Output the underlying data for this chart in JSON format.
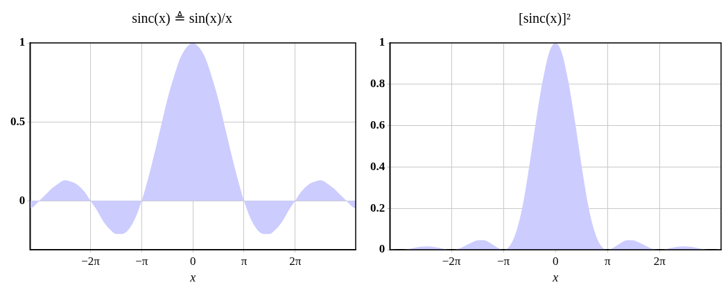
{
  "chart_data": [
    {
      "type": "area",
      "title": "sinc(x) ≜ sin(x)/x",
      "xlabel": "x",
      "x": [
        -10,
        -9.817,
        -9.425,
        -9.032,
        -8.639,
        -8.247,
        -7.854,
        -7.461,
        -7.069,
        -6.676,
        -6.283,
        -5.89,
        -5.498,
        -5.105,
        -4.712,
        -4.32,
        -3.927,
        -3.534,
        -3.142,
        -2.749,
        -2.356,
        -1.963,
        -1.571,
        -1.178,
        -0.785,
        -0.393,
        0,
        0.393,
        0.785,
        1.178,
        1.571,
        1.963,
        2.356,
        2.749,
        3.142,
        3.534,
        3.927,
        4.32,
        4.712,
        5.105,
        5.498,
        5.89,
        6.283,
        6.676,
        7.069,
        7.461,
        7.854,
        8.247,
        8.639,
        9.032,
        9.425,
        9.817,
        10
      ],
      "series": [
        {
          "color": "#ccccff",
          "values": [
            -0.05,
            -0.04,
            0,
            0.04,
            0.08,
            0.11,
            0.13,
            0.12,
            0.1,
            0.06,
            0,
            -0.06,
            -0.13,
            -0.18,
            -0.21,
            -0.21,
            -0.18,
            -0.11,
            0,
            0.14,
            0.3,
            0.47,
            0.64,
            0.78,
            0.9,
            0.97,
            1,
            0.97,
            0.9,
            0.78,
            0.64,
            0.47,
            0.3,
            0.14,
            0,
            -0.11,
            -0.18,
            -0.21,
            -0.21,
            -0.18,
            -0.13,
            -0.06,
            0,
            0.06,
            0.1,
            0.12,
            0.13,
            0.11,
            0.08,
            0.04,
            0,
            -0.04,
            -0.05
          ]
        }
      ],
      "xlim": [
        -10,
        10
      ],
      "ylim": [
        -0.31,
        1
      ],
      "xticks": [
        {
          "value": -6.283,
          "label": "−2π"
        },
        {
          "value": -3.142,
          "label": "−π"
        },
        0,
        {
          "value": 3.142,
          "label": "π"
        },
        {
          "value": 6.283,
          "label": "2π"
        }
      ],
      "yticks": [
        0,
        0.5,
        1
      ],
      "grid": true,
      "legend": false,
      "marker": "none"
    },
    {
      "type": "area",
      "title": "[sinc(x)]²",
      "xlabel": "x",
      "x": [
        -10,
        -9.817,
        -9.425,
        -9.032,
        -8.639,
        -8.247,
        -7.854,
        -7.461,
        -7.069,
        -6.676,
        -6.283,
        -5.89,
        -5.498,
        -5.105,
        -4.712,
        -4.32,
        -3.927,
        -3.534,
        -3.142,
        -2.749,
        -2.356,
        -1.963,
        -1.571,
        -1.178,
        -0.785,
        -0.393,
        0,
        0.393,
        0.785,
        1.178,
        1.571,
        1.963,
        2.356,
        2.749,
        3.142,
        3.534,
        3.927,
        4.32,
        4.712,
        5.105,
        5.498,
        5.89,
        6.283,
        6.676,
        7.069,
        7.461,
        7.854,
        8.247,
        8.639,
        9.032,
        9.425,
        9.817,
        10
      ],
      "series": [
        {
          "color": "#ccccff",
          "values": [
            0.003,
            0.002,
            0,
            0.002,
            0.007,
            0.013,
            0.016,
            0.015,
            0.01,
            0.003,
            0,
            0.004,
            0.017,
            0.033,
            0.045,
            0.046,
            0.032,
            0.012,
            0,
            0.019,
            0.09,
            0.22,
            0.41,
            0.62,
            0.81,
            0.95,
            1,
            0.95,
            0.81,
            0.62,
            0.41,
            0.22,
            0.09,
            0.019,
            0,
            0.012,
            0.032,
            0.046,
            0.045,
            0.033,
            0.017,
            0.004,
            0,
            0.003,
            0.01,
            0.015,
            0.016,
            0.013,
            0.007,
            0.002,
            0,
            0.002,
            0.003
          ]
        }
      ],
      "xlim": [
        -10,
        10
      ],
      "ylim": [
        0,
        1
      ],
      "xticks": [
        {
          "value": -6.283,
          "label": "−2π"
        },
        {
          "value": -3.142,
          "label": "−π"
        },
        0,
        {
          "value": 3.142,
          "label": "π"
        },
        {
          "value": 6.283,
          "label": "2π"
        }
      ],
      "yticks": [
        0,
        0.2,
        0.4,
        0.6,
        0.8,
        1
      ],
      "grid": true,
      "legend": false,
      "marker": "none"
    }
  ]
}
